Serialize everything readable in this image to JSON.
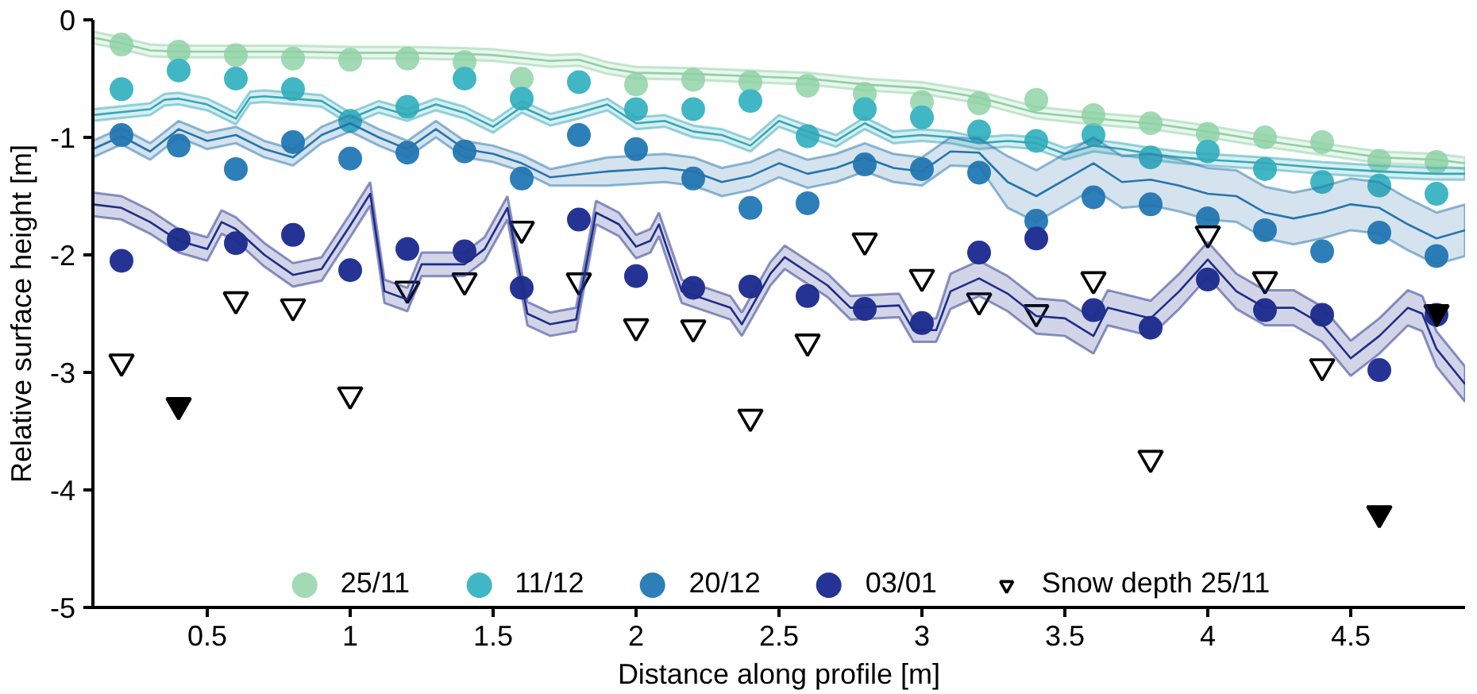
{
  "chart_data": {
    "type": "scatter",
    "xlabel": "Distance along profile [m]",
    "ylabel": "Relative surface height [m]",
    "xlim": [
      0.1,
      4.9
    ],
    "ylim": [
      -5,
      0
    ],
    "xticks": [
      0.5,
      1,
      1.5,
      2,
      2.5,
      3,
      3.5,
      4,
      4.5
    ],
    "yticks": [
      0,
      -1,
      -2,
      -3,
      -4,
      -5
    ],
    "grid": false,
    "legend": "bottom",
    "x": [
      0.2,
      0.4,
      0.6,
      0.8,
      1.0,
      1.2,
      1.4,
      1.6,
      1.8,
      2.0,
      2.2,
      2.4,
      2.6,
      2.8,
      3.0,
      3.2,
      3.4,
      3.6,
      3.8,
      4.0,
      4.2,
      4.4,
      4.6,
      4.8
    ],
    "series": [
      {
        "type": "line",
        "color": "#8fd0a5",
        "line_style": "solid",
        "x": [
          0.1,
          0.2,
          0.3,
          0.4,
          0.6,
          0.8,
          1.0,
          1.2,
          1.4,
          1.5,
          1.7,
          1.8,
          1.9,
          2.0,
          2.2,
          2.4,
          2.6,
          2.8,
          3.0,
          3.2,
          3.4,
          3.6,
          3.8,
          4.0,
          4.2,
          4.4,
          4.6,
          4.8,
          4.9
        ],
        "values": [
          -0.15,
          -0.2,
          -0.26,
          -0.27,
          -0.27,
          -0.27,
          -0.28,
          -0.28,
          -0.29,
          -0.3,
          -0.35,
          -0.34,
          -0.41,
          -0.45,
          -0.46,
          -0.48,
          -0.5,
          -0.55,
          -0.58,
          -0.66,
          -0.79,
          -0.84,
          -0.88,
          -0.95,
          -1.03,
          -1.1,
          -1.17,
          -1.19,
          -1.22
        ],
        "lower": [
          -0.2,
          -0.25,
          -0.31,
          -0.32,
          -0.32,
          -0.32,
          -0.33,
          -0.33,
          -0.34,
          -0.35,
          -0.4,
          -0.39,
          -0.46,
          -0.5,
          -0.51,
          -0.53,
          -0.55,
          -0.6,
          -0.63,
          -0.71,
          -0.84,
          -0.89,
          -0.93,
          -1.0,
          -1.08,
          -1.15,
          -1.22,
          -1.24,
          -1.27
        ],
        "upper": [
          -0.1,
          -0.15,
          -0.21,
          -0.22,
          -0.22,
          -0.22,
          -0.23,
          -0.23,
          -0.24,
          -0.25,
          -0.3,
          -0.29,
          -0.36,
          -0.4,
          -0.41,
          -0.43,
          -0.45,
          -0.5,
          -0.53,
          -0.61,
          -0.74,
          -0.79,
          -0.83,
          -0.9,
          -0.98,
          -1.05,
          -1.12,
          -1.14,
          -1.17
        ]
      },
      {
        "type": "line",
        "color": "#35a8b8",
        "line_style": "solid",
        "x": [
          0.1,
          0.3,
          0.35,
          0.4,
          0.5,
          0.6,
          0.65,
          0.7,
          0.9,
          1.0,
          1.1,
          1.2,
          1.3,
          1.4,
          1.5,
          1.6,
          1.7,
          1.8,
          1.9,
          2.0,
          2.1,
          2.2,
          2.3,
          2.4,
          2.5,
          2.6,
          2.7,
          2.8,
          2.9,
          3.0,
          3.1,
          3.2,
          3.3,
          3.4,
          3.5,
          3.6,
          3.7,
          3.8,
          3.9,
          4.0,
          4.2,
          4.4,
          4.6,
          4.8,
          4.9
        ],
        "values": [
          -0.81,
          -0.76,
          -0.68,
          -0.67,
          -0.72,
          -0.84,
          -0.66,
          -0.65,
          -0.69,
          -0.84,
          -0.74,
          -0.81,
          -0.72,
          -0.79,
          -0.91,
          -0.74,
          -0.85,
          -0.79,
          -0.72,
          -0.88,
          -0.86,
          -0.95,
          -0.98,
          -1.07,
          -0.86,
          -0.95,
          -1.03,
          -0.88,
          -1.0,
          -0.98,
          -1.0,
          -1.05,
          -1.03,
          -1.05,
          -1.14,
          -1.07,
          -1.1,
          -1.14,
          -1.17,
          -1.19,
          -1.22,
          -1.26,
          -1.29,
          -1.31,
          -1.31
        ],
        "lower": [
          -0.86,
          -0.81,
          -0.73,
          -0.72,
          -0.77,
          -0.89,
          -0.71,
          -0.7,
          -0.74,
          -0.89,
          -0.79,
          -0.86,
          -0.77,
          -0.84,
          -0.96,
          -0.79,
          -0.9,
          -0.84,
          -0.77,
          -0.93,
          -0.91,
          -1.0,
          -1.03,
          -1.12,
          -0.91,
          -1.0,
          -1.08,
          -0.93,
          -1.05,
          -1.03,
          -1.05,
          -1.1,
          -1.08,
          -1.1,
          -1.19,
          -1.12,
          -1.15,
          -1.19,
          -1.22,
          -1.24,
          -1.27,
          -1.31,
          -1.34,
          -1.36,
          -1.36
        ],
        "upper": [
          -0.76,
          -0.71,
          -0.63,
          -0.62,
          -0.67,
          -0.79,
          -0.61,
          -0.6,
          -0.64,
          -0.79,
          -0.69,
          -0.76,
          -0.67,
          -0.74,
          -0.86,
          -0.69,
          -0.8,
          -0.74,
          -0.67,
          -0.83,
          -0.81,
          -0.9,
          -0.93,
          -1.02,
          -0.81,
          -0.9,
          -0.98,
          -0.83,
          -0.95,
          -0.93,
          -0.95,
          -1.0,
          -0.98,
          -1.0,
          -1.09,
          -1.02,
          -1.05,
          -1.09,
          -1.12,
          -1.14,
          -1.17,
          -1.21,
          -1.24,
          -1.26,
          -1.26
        ]
      },
      {
        "type": "line",
        "color": "#2674ab",
        "line_style": "solid",
        "x": [
          0.1,
          0.2,
          0.3,
          0.4,
          0.5,
          0.6,
          0.7,
          0.8,
          0.9,
          1.0,
          1.1,
          1.2,
          1.3,
          1.4,
          1.5,
          1.6,
          1.7,
          1.9,
          2.1,
          2.2,
          2.3,
          2.4,
          2.5,
          2.6,
          2.7,
          2.8,
          2.9,
          3.0,
          3.1,
          3.2,
          3.3,
          3.4,
          3.5,
          3.6,
          3.7,
          3.8,
          3.9,
          4.0,
          4.1,
          4.2,
          4.3,
          4.4,
          4.5,
          4.6,
          4.7,
          4.8,
          4.9
        ],
        "values": [
          -1.1,
          -0.99,
          -1.12,
          -0.93,
          -1.03,
          -0.98,
          -1.1,
          -1.17,
          -0.98,
          -0.88,
          -1.0,
          -1.1,
          -0.93,
          -1.1,
          -1.14,
          -1.22,
          -1.34,
          -1.29,
          -1.26,
          -1.29,
          -1.38,
          -1.33,
          -1.22,
          -1.31,
          -1.26,
          -1.17,
          -1.26,
          -1.29,
          -1.12,
          -1.13,
          -1.38,
          -1.5,
          -1.36,
          -1.22,
          -1.38,
          -1.36,
          -1.41,
          -1.48,
          -1.5,
          -1.64,
          -1.69,
          -1.64,
          -1.57,
          -1.6,
          -1.74,
          -1.86,
          -1.79
        ],
        "lower": [
          -1.17,
          -1.06,
          -1.19,
          -1.0,
          -1.1,
          -1.05,
          -1.17,
          -1.24,
          -1.05,
          -0.95,
          -1.07,
          -1.17,
          -1.0,
          -1.17,
          -1.21,
          -1.29,
          -1.41,
          -1.41,
          -1.38,
          -1.41,
          -1.5,
          -1.45,
          -1.34,
          -1.43,
          -1.38,
          -1.29,
          -1.38,
          -1.41,
          -1.24,
          -1.25,
          -1.6,
          -1.72,
          -1.58,
          -1.44,
          -1.6,
          -1.58,
          -1.63,
          -1.7,
          -1.72,
          -1.86,
          -1.91,
          -1.86,
          -1.79,
          -1.82,
          -1.96,
          -2.08,
          -2.01
        ],
        "upper": [
          -1.03,
          -0.92,
          -1.05,
          -0.86,
          -0.96,
          -0.91,
          -1.03,
          -1.1,
          -0.91,
          -0.81,
          -0.93,
          -1.03,
          -0.86,
          -1.03,
          -1.07,
          -1.15,
          -1.27,
          -1.17,
          -1.14,
          -1.17,
          -1.26,
          -1.21,
          -1.1,
          -1.19,
          -1.14,
          -1.05,
          -1.14,
          -1.17,
          -1.0,
          -1.01,
          -1.16,
          -1.28,
          -1.14,
          -1.0,
          -1.16,
          -1.14,
          -1.19,
          -1.26,
          -1.28,
          -1.42,
          -1.47,
          -1.42,
          -1.35,
          -1.38,
          -1.52,
          -1.64,
          -1.57
        ]
      },
      {
        "type": "line",
        "color": "#1f2d88",
        "line_style": "solid",
        "x": [
          0.1,
          0.2,
          0.3,
          0.4,
          0.5,
          0.55,
          0.6,
          0.7,
          0.8,
          0.9,
          1.0,
          1.07,
          1.12,
          1.2,
          1.25,
          1.4,
          1.47,
          1.55,
          1.62,
          1.7,
          1.79,
          1.86,
          1.94,
          2.0,
          2.05,
          2.08,
          2.16,
          2.33,
          2.37,
          2.47,
          2.52,
          2.67,
          2.75,
          2.92,
          2.97,
          3.05,
          3.1,
          3.2,
          3.3,
          3.4,
          3.5,
          3.6,
          3.65,
          3.8,
          3.9,
          4.0,
          4.1,
          4.2,
          4.3,
          4.4,
          4.5,
          4.6,
          4.7,
          4.75,
          4.8,
          4.9
        ],
        "values": [
          -1.57,
          -1.6,
          -1.72,
          -1.88,
          -1.95,
          -1.72,
          -1.78,
          -2.0,
          -2.17,
          -2.12,
          -1.75,
          -1.48,
          -2.31,
          -2.38,
          -2.08,
          -2.08,
          -1.95,
          -1.6,
          -2.5,
          -2.59,
          -2.55,
          -1.64,
          -1.74,
          -1.93,
          -1.88,
          -1.74,
          -2.31,
          -2.45,
          -2.59,
          -2.16,
          -2.02,
          -2.26,
          -2.45,
          -2.43,
          -2.64,
          -2.64,
          -2.31,
          -2.2,
          -2.33,
          -2.52,
          -2.54,
          -2.69,
          -2.45,
          -2.54,
          -2.31,
          -2.04,
          -2.31,
          -2.45,
          -2.45,
          -2.59,
          -2.88,
          -2.69,
          -2.45,
          -2.5,
          -2.8,
          -3.1
        ],
        "lower": [
          -1.67,
          -1.7,
          -1.82,
          -1.98,
          -2.05,
          -1.82,
          -1.88,
          -2.1,
          -2.27,
          -2.22,
          -1.85,
          -1.58,
          -2.41,
          -2.48,
          -2.18,
          -2.18,
          -2.05,
          -1.7,
          -2.6,
          -2.69,
          -2.65,
          -1.74,
          -1.84,
          -2.03,
          -1.98,
          -1.84,
          -2.41,
          -2.55,
          -2.69,
          -2.26,
          -2.12,
          -2.36,
          -2.55,
          -2.53,
          -2.74,
          -2.74,
          -2.46,
          -2.35,
          -2.48,
          -2.67,
          -2.69,
          -2.84,
          -2.6,
          -2.69,
          -2.46,
          -2.19,
          -2.46,
          -2.6,
          -2.6,
          -2.74,
          -3.03,
          -2.84,
          -2.6,
          -2.65,
          -2.95,
          -3.25
        ],
        "upper": [
          -1.47,
          -1.5,
          -1.62,
          -1.78,
          -1.85,
          -1.62,
          -1.68,
          -1.9,
          -2.07,
          -2.02,
          -1.65,
          -1.38,
          -2.21,
          -2.28,
          -1.98,
          -1.98,
          -1.85,
          -1.5,
          -2.4,
          -2.49,
          -2.45,
          -1.54,
          -1.64,
          -1.83,
          -1.78,
          -1.64,
          -2.21,
          -2.35,
          -2.49,
          -2.06,
          -1.92,
          -2.16,
          -2.35,
          -2.33,
          -2.54,
          -2.54,
          -2.16,
          -2.05,
          -2.18,
          -2.37,
          -2.39,
          -2.54,
          -2.3,
          -2.39,
          -2.16,
          -1.89,
          -2.16,
          -2.3,
          -2.3,
          -2.44,
          -2.73,
          -2.54,
          -2.3,
          -2.35,
          -2.65,
          -2.95
        ]
      },
      {
        "name": "25/11",
        "color": "#a1dab4",
        "marker": "circle",
        "values": [
          -0.21,
          -0.27,
          -0.3,
          -0.33,
          -0.34,
          -0.33,
          -0.36,
          -0.5,
          null,
          -0.55,
          -0.51,
          -0.53,
          -0.56,
          -0.63,
          -0.7,
          -0.71,
          -0.68,
          -0.81,
          -0.88,
          -0.97,
          -1.0,
          -1.04,
          -1.2,
          -1.21
        ]
      },
      {
        "name": "11/12",
        "color": "#41b6c4",
        "marker": "circle",
        "values": [
          -0.59,
          -0.43,
          -0.5,
          -0.59,
          -0.86,
          -0.74,
          -0.5,
          -0.67,
          -0.53,
          -0.76,
          -0.76,
          -0.69,
          -0.99,
          -0.76,
          -0.83,
          -0.95,
          -1.03,
          -0.98,
          -1.17,
          -1.12,
          -1.27,
          -1.38,
          -1.41,
          -1.48
        ]
      },
      {
        "name": "20/12",
        "color": "#2c7fb8",
        "marker": "circle",
        "values": [
          -0.98,
          -1.07,
          -1.27,
          -1.04,
          -1.18,
          -1.13,
          -1.12,
          -1.35,
          -0.98,
          -1.1,
          -1.35,
          -1.6,
          -1.56,
          -1.23,
          -1.27,
          -1.3,
          -1.71,
          -1.51,
          -1.57,
          -1.69,
          -1.79,
          -1.97,
          -1.81,
          -2.01
        ]
      },
      {
        "name": "03/01",
        "color": "#253494",
        "marker": "circle",
        "values": [
          -2.05,
          -1.87,
          -1.9,
          -1.83,
          -2.13,
          -1.95,
          -1.97,
          -2.28,
          -1.7,
          -2.18,
          -2.28,
          -2.27,
          -2.35,
          -2.46,
          -2.58,
          -1.98,
          -1.86,
          -2.47,
          -2.62,
          -2.21,
          -2.47,
          -2.51,
          -2.98,
          -2.51
        ]
      },
      {
        "name": "Snow depth 25/11",
        "color": "#ffffff",
        "marker": "triangle",
        "values": [
          -2.91,
          null,
          -2.38,
          -2.44,
          -3.19,
          -2.29,
          -2.22,
          -1.78,
          -2.22,
          -2.61,
          -2.62,
          -3.38,
          -2.74,
          -1.88,
          -2.19,
          -2.39,
          -2.49,
          -2.21,
          -3.73,
          -1.82,
          -2.21,
          -2.95,
          null,
          null
        ]
      },
      {
        "color": "#000000",
        "marker": "triangle",
        "values": [
          null,
          -3.28,
          null,
          null,
          null,
          null,
          null,
          null,
          null,
          null,
          null,
          null,
          null,
          null,
          null,
          null,
          null,
          null,
          null,
          null,
          null,
          null,
          -4.2,
          -2.49
        ]
      }
    ]
  }
}
